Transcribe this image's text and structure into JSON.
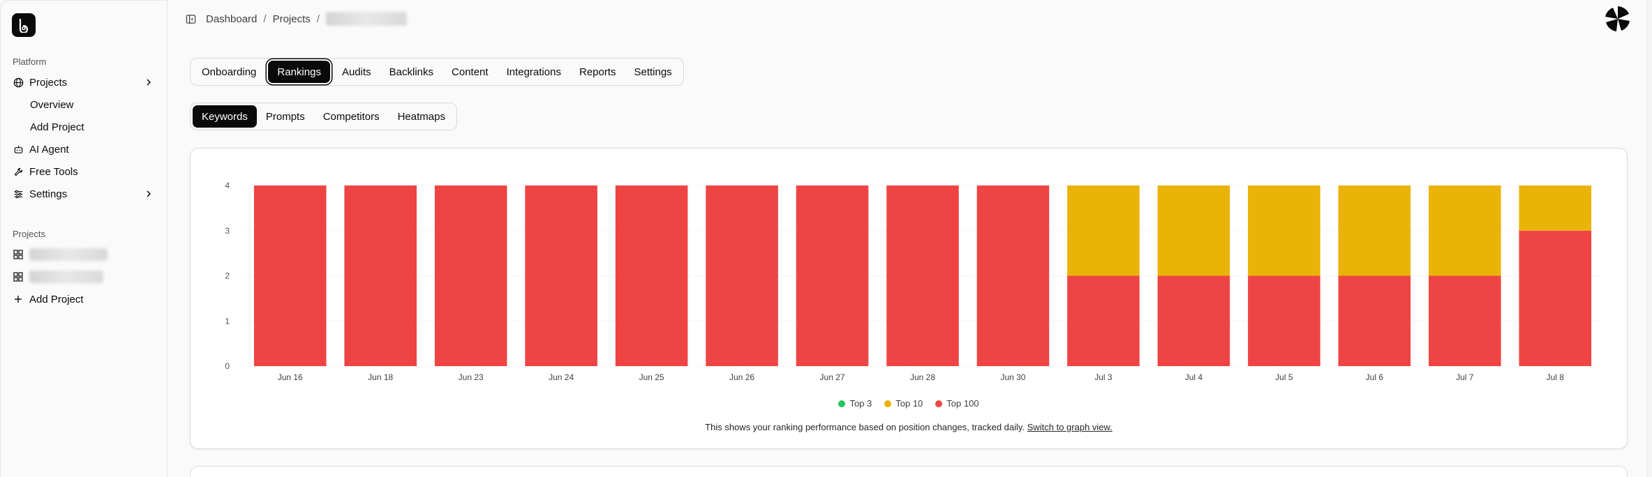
{
  "breadcrumb": {
    "items": [
      "Dashboard",
      "Projects"
    ],
    "separator": "/"
  },
  "sidebar": {
    "platform_label": "Platform",
    "projects_label": "Projects",
    "overview_label": "Overview",
    "add_project_label": "Add Project",
    "ai_agent_label": "AI Agent",
    "free_tools_label": "Free Tools",
    "settings_label": "Settings",
    "projects_section_label": "Projects",
    "add_project_bottom_label": "Add Project"
  },
  "tabs": [
    "Onboarding",
    "Rankings",
    "Audits",
    "Backlinks",
    "Content",
    "Integrations",
    "Reports",
    "Settings"
  ],
  "subtabs": [
    "Keywords",
    "Prompts",
    "Competitors",
    "Heatmaps"
  ],
  "chart_data": {
    "type": "bar",
    "stacked": true,
    "categories": [
      "Jun 16",
      "Jun 18",
      "Jun 23",
      "Jun 24",
      "Jun 25",
      "Jun 26",
      "Jun 27",
      "Jun 28",
      "Jun 30",
      "Jul 3",
      "Jul 4",
      "Jul 5",
      "Jul 6",
      "Jul 7",
      "Jul 8"
    ],
    "series": [
      {
        "name": "Top 3",
        "color": "#22c55e",
        "values": [
          0,
          0,
          0,
          0,
          0,
          0,
          0,
          0,
          0,
          0,
          0,
          0,
          0,
          0,
          0
        ]
      },
      {
        "name": "Top 10",
        "color": "#eab308",
        "values": [
          0,
          0,
          0,
          0,
          0,
          0,
          0,
          0,
          0,
          2,
          2,
          2,
          2,
          2,
          1
        ]
      },
      {
        "name": "Top 100",
        "color": "#ef4444",
        "values": [
          4,
          4,
          4,
          4,
          4,
          4,
          4,
          4,
          4,
          2,
          2,
          2,
          2,
          2,
          3
        ]
      }
    ],
    "yticks": [
      0,
      1,
      2,
      3,
      4
    ],
    "ylim": [
      0,
      4
    ],
    "legend_position": "bottom",
    "grid": true
  },
  "footer_note": {
    "text": "This shows your ranking performance based on position changes, tracked daily.",
    "link": "Switch to graph view."
  }
}
